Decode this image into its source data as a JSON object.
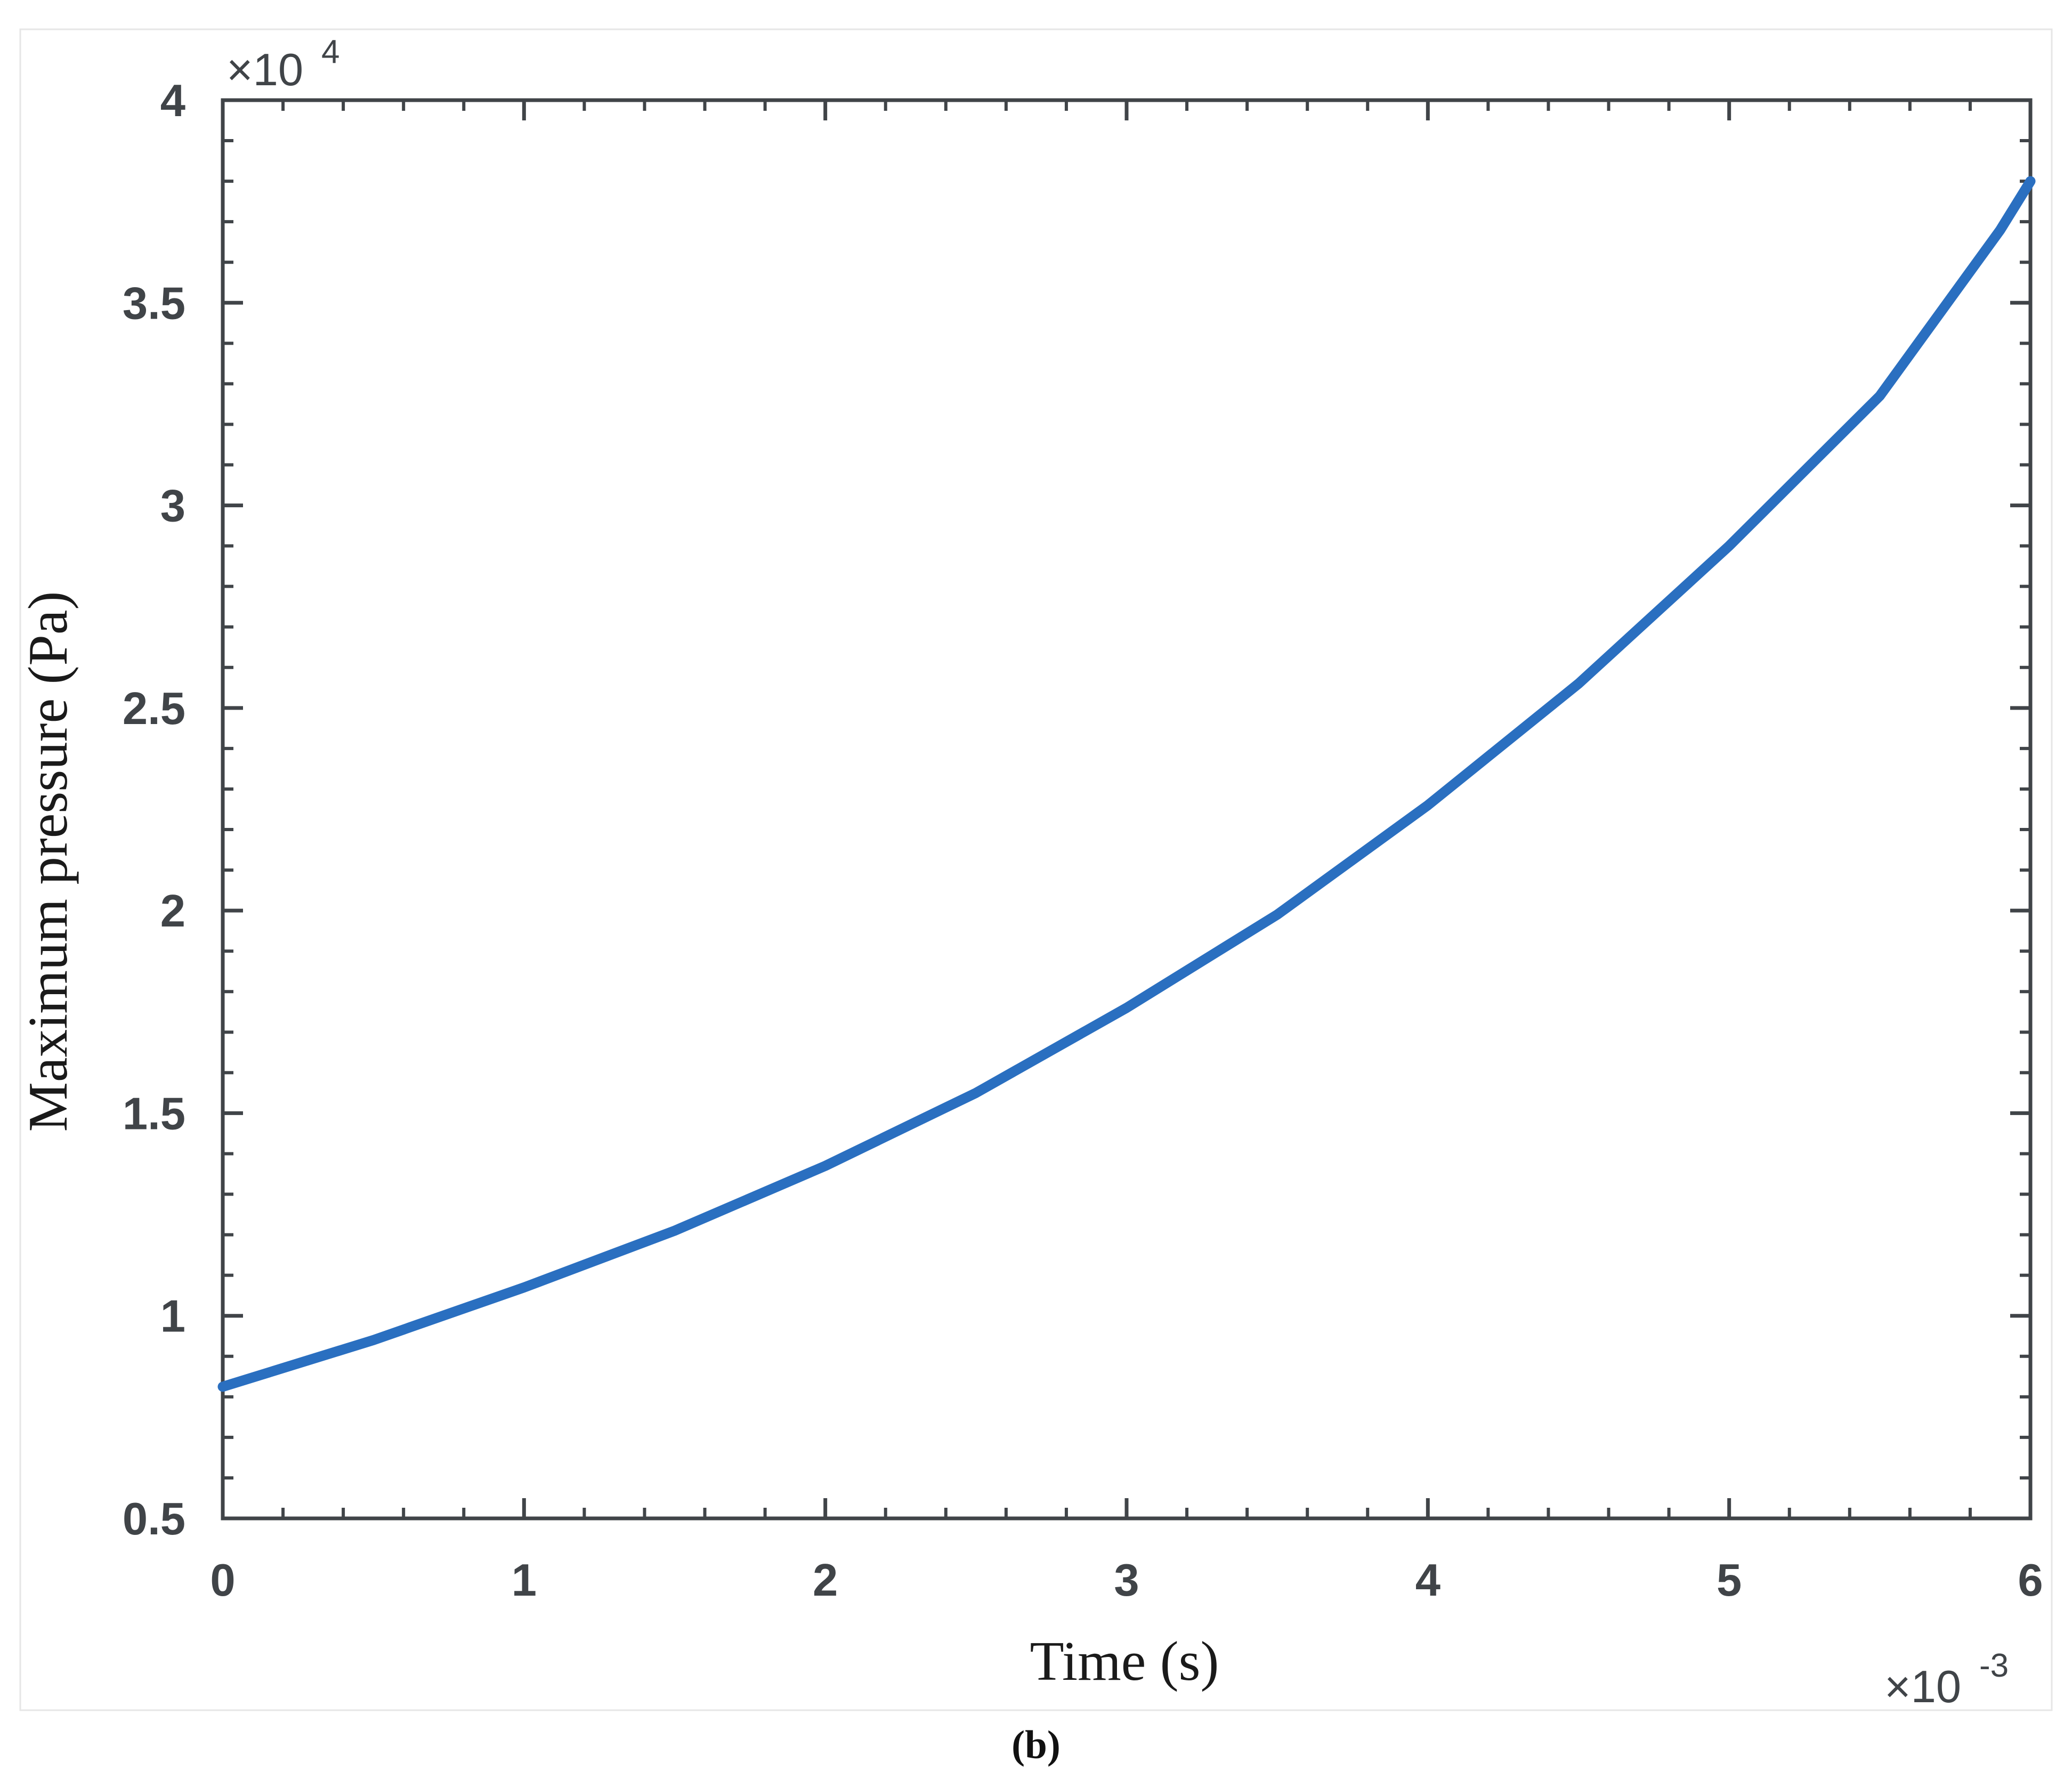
{
  "chart_data": {
    "type": "line",
    "x_axis": {
      "label": "Time (s)",
      "lim": [
        0,
        0.006
      ],
      "ticks": [
        0,
        0.001,
        0.002,
        0.003,
        0.004,
        0.005,
        0.006
      ],
      "tick_labels": [
        "0",
        "1",
        "2",
        "3",
        "4",
        "5",
        "6"
      ],
      "exponent_mult": "×10",
      "exponent_power": "-3"
    },
    "y_axis": {
      "label": "Maximum pressure (Pa)",
      "lim": [
        5000,
        40000
      ],
      "ticks": [
        5000,
        10000,
        15000,
        20000,
        25000,
        30000,
        35000,
        40000
      ],
      "tick_labels": [
        "0.5",
        "1",
        "1.5",
        "2",
        "2.5",
        "3",
        "3.5",
        "4"
      ],
      "exponent_mult": "×10",
      "exponent_power": "4"
    },
    "grid": false,
    "box": true,
    "series": [
      {
        "color": "#2a6fc0",
        "x": [
          0,
          0.0005,
          0.001,
          0.0015,
          0.002,
          0.0025,
          0.003,
          0.0035,
          0.004,
          0.0045,
          0.005,
          0.0055,
          0.0059,
          0.006
        ],
        "y": [
          8250,
          9400,
          10700,
          12100,
          13700,
          15500,
          17600,
          19900,
          22600,
          25600,
          29000,
          32700,
          36800,
          38000
        ]
      }
    ],
    "caption": "(b)"
  }
}
